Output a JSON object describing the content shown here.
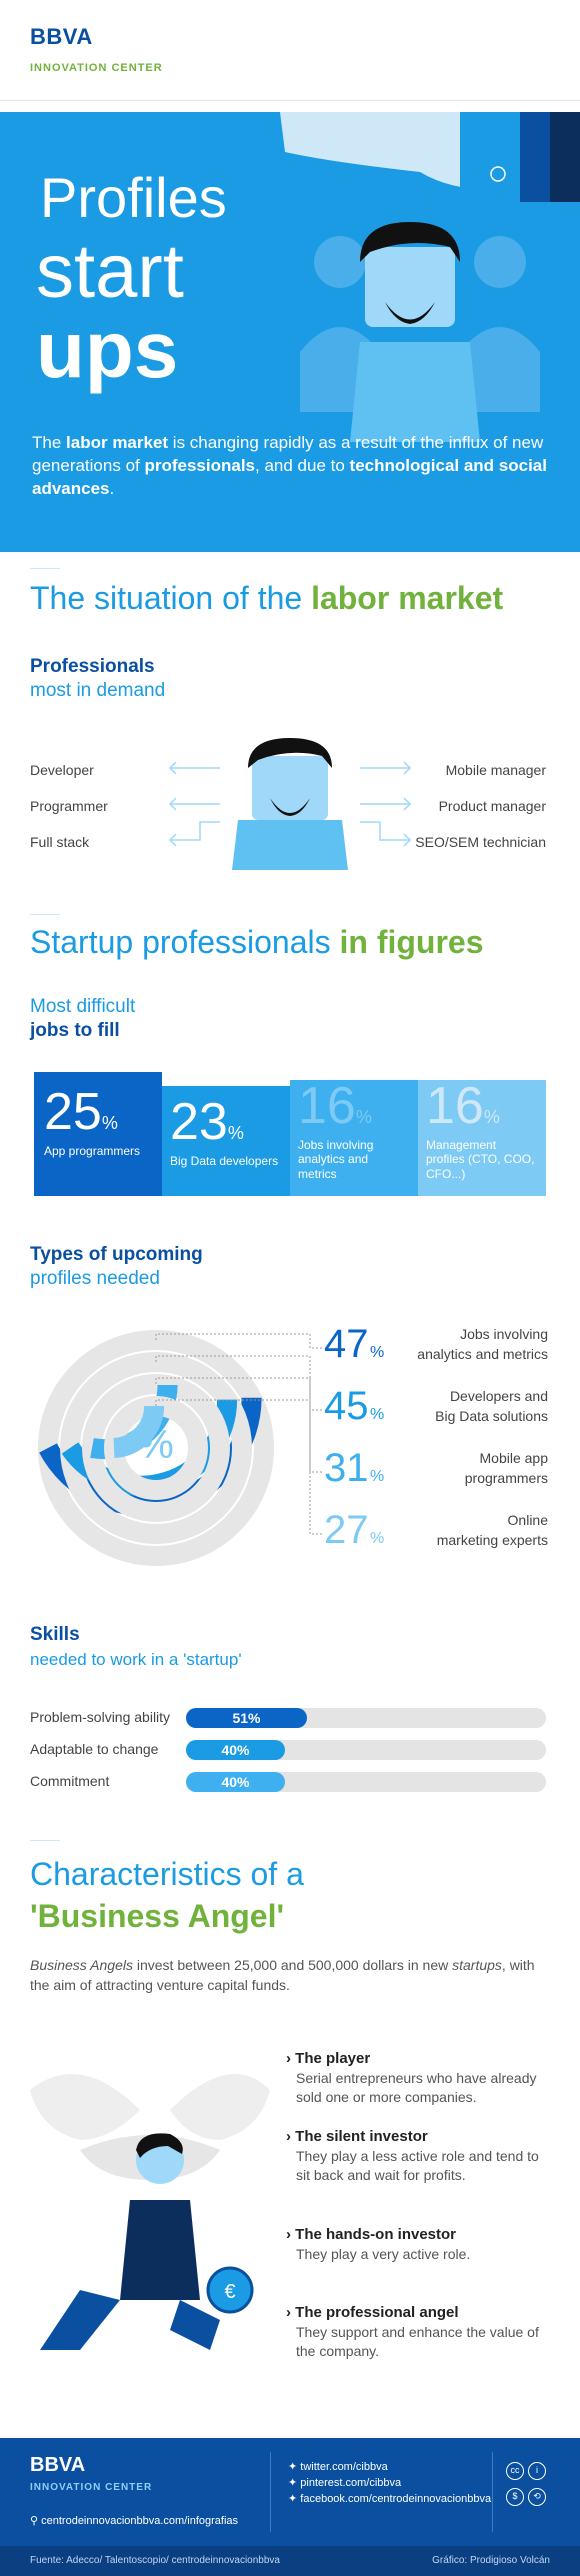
{
  "header": {
    "logo": "BBVA",
    "subtitle": "INNOVATION CENTER"
  },
  "hero": {
    "title_1": "Profiles",
    "title_2": "start",
    "title_3": "ups",
    "intro_a": "The ",
    "intro_b": "labor market",
    "intro_c": " is changing rapidly as a result of the influx of new generations of ",
    "intro_d": "professionals",
    "intro_e": ", and due to ",
    "intro_f": "technological and social advances",
    "intro_g": "."
  },
  "situation": {
    "title_a": "The situation of the ",
    "title_b": "labor market",
    "heading": "Professionals",
    "subheading": "most in demand",
    "left_roles": [
      "Developer",
      "Programmer",
      "Full stack"
    ],
    "right_roles": [
      "Mobile manager",
      "Product manager",
      "SEO/SEM technician"
    ]
  },
  "figures": {
    "title_a": "Startup professionals ",
    "title_b": "in figures",
    "heading_a": "Most difficult",
    "heading_b": "jobs to fill",
    "boxes": [
      {
        "value": "25",
        "unit": "%",
        "label": "App programmers",
        "color": "#0a65c6"
      },
      {
        "value": "23",
        "unit": "%",
        "label": "Big Data developers",
        "color": "#1a9be3"
      },
      {
        "value": "16",
        "unit": "%",
        "label": "Jobs involving analytics and metrics",
        "color": "#3fb0ef"
      },
      {
        "value": "16",
        "unit": "%",
        "label": "Management profiles (CTO, COO, CFO...)",
        "color": "#7dcaf4"
      }
    ]
  },
  "upcoming": {
    "heading_a": "Types of upcoming",
    "heading_b": "profiles needed",
    "center_symbol": "%",
    "items": [
      {
        "value": "47",
        "unit": "%",
        "label_1": "Jobs involving",
        "label_2": "analytics and metrics",
        "color": "#0a65c6"
      },
      {
        "value": "45",
        "unit": "%",
        "label_1": "Developers and",
        "label_2": "Big Data solutions",
        "color": "#1a9be3"
      },
      {
        "value": "31",
        "unit": "%",
        "label_1": "Mobile app",
        "label_2": "programmers",
        "color": "#3fb0ef"
      },
      {
        "value": "27",
        "unit": "%",
        "label_1": "Online",
        "label_2": "marketing experts",
        "color": "#7dcaf4"
      }
    ]
  },
  "skills": {
    "heading": "Skills",
    "subheading": "needed to work in a 'startup'",
    "items": [
      {
        "label": "Problem-solving ability",
        "value": "51%",
        "fraction": 0.51,
        "color": "#0a65c6"
      },
      {
        "label": "Adaptable to change",
        "value": "40%",
        "fraction": 0.4,
        "color": "#1a9be3"
      },
      {
        "label": "Commitment",
        "value": "40%",
        "fraction": 0.4,
        "color": "#3fb0ef"
      }
    ]
  },
  "angel": {
    "title_a": "Characteristics of a",
    "title_b": "'Business Angel'",
    "desc_a": "Business Angels",
    "desc_b": " invest between 25,000 and 500,000 dollars in new ",
    "desc_c": "startups",
    "desc_d": ", with the aim of attracting venture capital funds.",
    "types": [
      {
        "name": "The player",
        "desc": "Serial entrepreneurs who have already sold one or more companies."
      },
      {
        "name": "The silent investor",
        "desc": "They play a less active role and tend to sit back and wait for profits."
      },
      {
        "name": "The hands-on investor",
        "desc": "They play a very active role."
      },
      {
        "name": "The professional angel",
        "desc": "They support and enhance the value of the company."
      }
    ],
    "coin_symbol": "€"
  },
  "footer": {
    "logo": "BBVA",
    "subtitle": "INNOVATION CENTER",
    "site": "centrodeinnovacionbbva.com/infografias",
    "socials": [
      "twitter.com/cibbva",
      "pinterest.com/cibbva",
      "facebook.com/centrodeinnovacionbbva"
    ],
    "source": "Fuente: Adecco/ Talentoscopio/ centrodeinnovacionbbva",
    "credit": "Gráfico: Prodigioso Volcán"
  }
}
